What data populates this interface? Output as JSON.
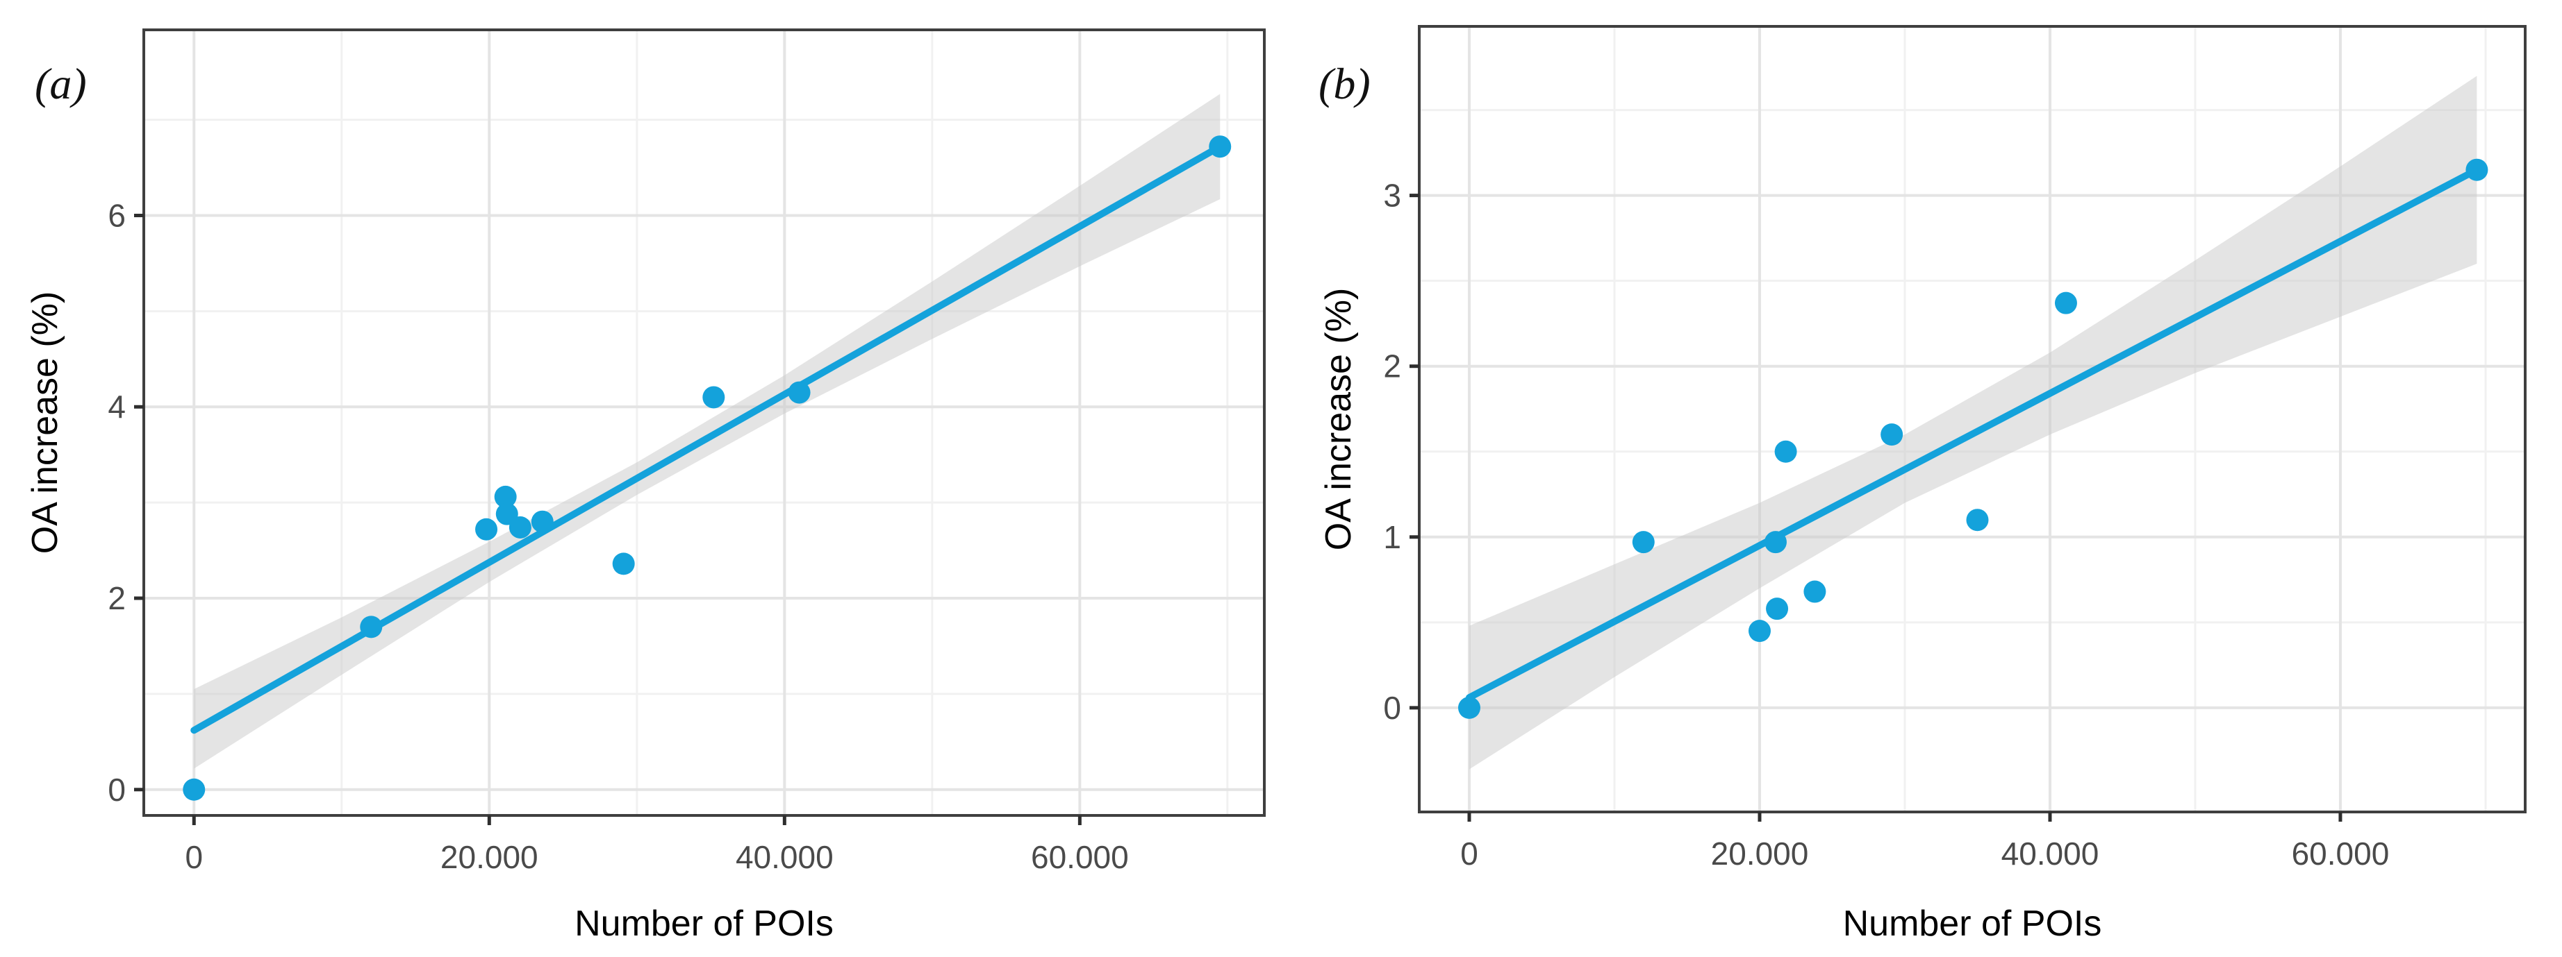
{
  "figure": {
    "description": "Two-panel scatter plot with linear regression fits and confidence bands",
    "accent_color": "#14a2db",
    "band_color": "#c9c9c9",
    "band_opacity": 0.5,
    "grid_major_color": "#e4e4e4",
    "grid_minor_color": "#f1f1f1",
    "border_color": "#3f3f3f",
    "tick_color": "#2e2e2e",
    "tick_label_color": "#4a4a4a",
    "axis_title_color": "#000000",
    "point_radius": 16,
    "line_width": 10
  },
  "chart_data": [
    {
      "type": "scatter",
      "panel_label": "(a)",
      "xlabel": "Number of POIs",
      "ylabel": "OA increase (%)",
      "xlim": [
        -3400,
        72500
      ],
      "ylim": [
        -0.27,
        7.94
      ],
      "grid": true,
      "legend": "none",
      "x_ticks": [
        {
          "v": 0,
          "label": "0"
        },
        {
          "v": 20000,
          "label": "20.000"
        },
        {
          "v": 40000,
          "label": "40.000"
        },
        {
          "v": 60000,
          "label": "60.000"
        }
      ],
      "y_ticks": [
        {
          "v": 0,
          "label": "0"
        },
        {
          "v": 2,
          "label": "2"
        },
        {
          "v": 4,
          "label": "4"
        },
        {
          "v": 6,
          "label": "6"
        }
      ],
      "x_minor": [
        10000,
        30000,
        50000,
        70000
      ],
      "y_minor": [
        1,
        3,
        5,
        7
      ],
      "points": [
        [
          0,
          0.0
        ],
        [
          12000,
          1.7
        ],
        [
          19800,
          2.72
        ],
        [
          21100,
          3.06
        ],
        [
          21200,
          2.88
        ],
        [
          22100,
          2.74
        ],
        [
          23600,
          2.8
        ],
        [
          29100,
          2.36
        ],
        [
          35200,
          4.1
        ],
        [
          41000,
          4.15
        ],
        [
          69500,
          6.72
        ]
      ],
      "trend": {
        "x1": 0,
        "y1": 0.62,
        "x2": 69500,
        "y2": 6.72
      },
      "band": [
        {
          "x": 0,
          "lo": 0.22,
          "hi": 1.05
        },
        {
          "x": 10000,
          "lo": 1.2,
          "hi": 1.8
        },
        {
          "x": 20000,
          "lo": 2.17,
          "hi": 2.59
        },
        {
          "x": 30000,
          "lo": 3.08,
          "hi": 3.42
        },
        {
          "x": 40000,
          "lo": 3.93,
          "hi": 4.33
        },
        {
          "x": 50000,
          "lo": 4.71,
          "hi": 5.31
        },
        {
          "x": 60000,
          "lo": 5.47,
          "hi": 6.31
        },
        {
          "x": 69500,
          "lo": 6.17,
          "hi": 7.27
        }
      ]
    },
    {
      "type": "scatter",
      "panel_label": "(b)",
      "xlabel": "Number of POIs",
      "ylabel": "OA increase (%)",
      "xlim": [
        -3445,
        72730
      ],
      "ylim": [
        -0.61,
        3.99
      ],
      "grid": true,
      "legend": "none",
      "x_ticks": [
        {
          "v": 0,
          "label": "0"
        },
        {
          "v": 20000,
          "label": "20.000"
        },
        {
          "v": 40000,
          "label": "40.000"
        },
        {
          "v": 60000,
          "label": "60.000"
        }
      ],
      "y_ticks": [
        {
          "v": 0,
          "label": "0"
        },
        {
          "v": 1,
          "label": "1"
        },
        {
          "v": 2,
          "label": "2"
        },
        {
          "v": 3,
          "label": "3"
        }
      ],
      "x_minor": [
        10000,
        30000,
        50000,
        70000
      ],
      "y_minor": [
        0.5,
        1.5,
        2.5,
        3.5
      ],
      "points": [
        [
          0,
          0.0
        ],
        [
          12000,
          0.97
        ],
        [
          20000,
          0.45
        ],
        [
          21100,
          0.97
        ],
        [
          21200,
          0.58
        ],
        [
          21800,
          1.5
        ],
        [
          23800,
          0.68
        ],
        [
          29100,
          1.6
        ],
        [
          35000,
          1.1
        ],
        [
          41100,
          2.37
        ],
        [
          69400,
          3.15
        ]
      ],
      "trend": {
        "x1": 0,
        "y1": 0.06,
        "x2": 69400,
        "y2": 3.15
      },
      "band": [
        {
          "x": 0,
          "lo": -0.36,
          "hi": 0.48
        },
        {
          "x": 10000,
          "lo": 0.18,
          "hi": 0.84
        },
        {
          "x": 20000,
          "lo": 0.7,
          "hi": 1.2
        },
        {
          "x": 30000,
          "lo": 1.2,
          "hi": 1.6
        },
        {
          "x": 40000,
          "lo": 1.6,
          "hi": 2.08
        },
        {
          "x": 50000,
          "lo": 1.96,
          "hi": 2.62
        },
        {
          "x": 60000,
          "lo": 2.29,
          "hi": 3.17
        },
        {
          "x": 69400,
          "lo": 2.6,
          "hi": 3.7
        }
      ]
    }
  ]
}
